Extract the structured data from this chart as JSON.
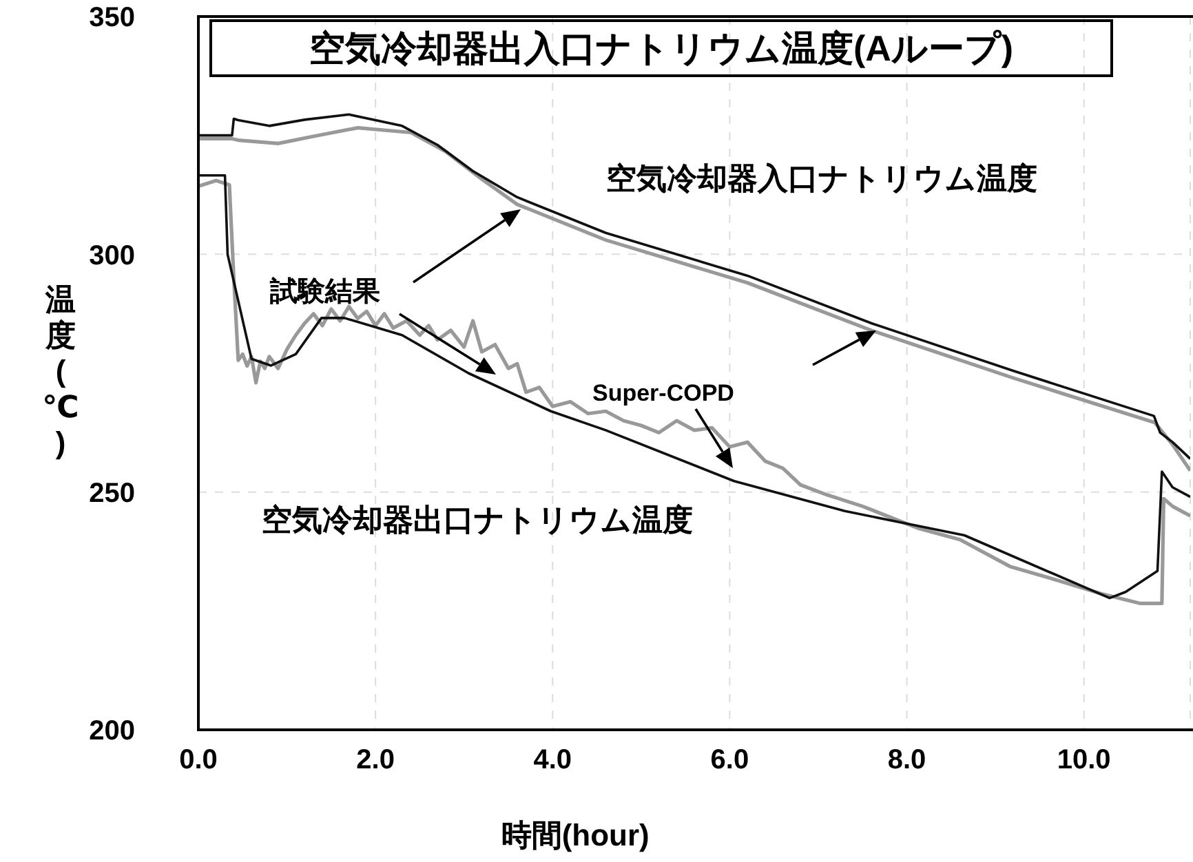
{
  "chart_data": {
    "type": "line",
    "title": "空気冷却器出入口ナトリウム温度(Aループ)",
    "xlabel": "時間(hour)",
    "ylabel": "温度(℃)",
    "annotations": [
      "空気冷却器入口ナトリウム温度",
      "試験結果",
      "Super-COPD",
      "空気冷却器出口ナトリウム温度"
    ],
    "xlim": [
      0,
      11.2
    ],
    "xticks": [
      {
        "value": 0,
        "label": "0.0"
      },
      {
        "value": 2,
        "label": "2.0"
      },
      {
        "value": 4,
        "label": "4.0"
      },
      {
        "value": 6,
        "label": "6.0"
      },
      {
        "value": 8,
        "label": "8.0"
      },
      {
        "value": 10,
        "label": "10.0"
      }
    ],
    "ylim": [
      200,
      350
    ],
    "yticks": [
      200,
      250,
      300,
      350
    ],
    "grid": true,
    "marker": "none",
    "line_style": "solid",
    "series": [
      {
        "color": "#999999",
        "x": [
          0,
          0.38,
          0.45,
          0.9,
          1.3,
          1.8,
          2.4,
          2.8,
          3.2,
          3.6,
          4.6,
          6.2,
          7.6,
          9.2,
          10.8,
          11.0,
          11.2
        ],
        "values": [
          324.3,
          324.3,
          324,
          323.3,
          324.8,
          326.6,
          325.6,
          321.5,
          315.8,
          310.5,
          303,
          294,
          284,
          274,
          264.6,
          260,
          254.5
        ]
      },
      {
        "color": "#111111",
        "x": [
          0,
          0.38,
          0.4,
          0.45,
          0.8,
          1.2,
          1.7,
          2.3,
          2.7,
          3.1,
          3.6,
          4.6,
          6.2,
          7.6,
          9.2,
          10.79,
          10.86,
          11.0,
          11.2
        ],
        "values": [
          325,
          325,
          328.5,
          328.2,
          327,
          328.3,
          329.4,
          327,
          323,
          317.5,
          312,
          304.5,
          295.5,
          285.5,
          275.5,
          266,
          262.5,
          260.5,
          257
        ]
      },
      {
        "color": "#999999",
        "x": [
          0,
          0.2,
          0.35,
          0.4,
          0.45,
          0.5,
          0.55,
          0.6,
          0.65,
          0.7,
          0.75,
          0.8,
          0.9,
          1.0,
          1.1,
          1.2,
          1.3,
          1.4,
          1.5,
          1.6,
          1.7,
          1.8,
          1.9,
          2.0,
          2.1,
          2.2,
          2.35,
          2.5,
          2.6,
          2.7,
          2.85,
          3.0,
          3.1,
          3.2,
          3.35,
          3.5,
          3.6,
          3.7,
          3.85,
          4.0,
          4.2,
          4.4,
          4.6,
          4.8,
          5.0,
          5.2,
          5.4,
          5.6,
          5.8,
          6.0,
          6.2,
          6.4,
          6.6,
          6.8,
          7.1,
          7.5,
          8.14,
          8.6,
          9.17,
          9.6,
          10.2,
          10.63,
          10.88,
          10.9,
          11.0,
          11.2
        ],
        "values": [
          314.3,
          315.5,
          314.6,
          295,
          277.7,
          279,
          276.5,
          278.5,
          273,
          277.5,
          276,
          278.5,
          276,
          280,
          283,
          285.5,
          287.5,
          285,
          288.5,
          286,
          289,
          286.5,
          288,
          285,
          287.5,
          284.5,
          286,
          283,
          285,
          282,
          284,
          280.5,
          286,
          279.5,
          281,
          276,
          277,
          271,
          272,
          268,
          269,
          266.5,
          267,
          265,
          264,
          262.5,
          265,
          263,
          263.5,
          259.5,
          260.5,
          256.5,
          255,
          251.5,
          249.4,
          247,
          242.3,
          240,
          234.3,
          232,
          228.6,
          226.6,
          226.6,
          248.6,
          247,
          245
        ]
      },
      {
        "color": "#111111",
        "x": [
          0,
          0.3,
          0.33,
          0.6,
          0.82,
          1.1,
          1.39,
          1.65,
          2.3,
          3.05,
          3.98,
          4.6,
          6.05,
          7.3,
          8.65,
          10.29,
          10.47,
          10.83,
          10.88,
          11.0,
          11.2
        ],
        "values": [
          316.6,
          316.6,
          300,
          278,
          276.6,
          279,
          286.6,
          286.6,
          283,
          275,
          267,
          263,
          252.3,
          246,
          240.9,
          227.7,
          229,
          233.4,
          254.3,
          251,
          249
        ]
      }
    ]
  }
}
